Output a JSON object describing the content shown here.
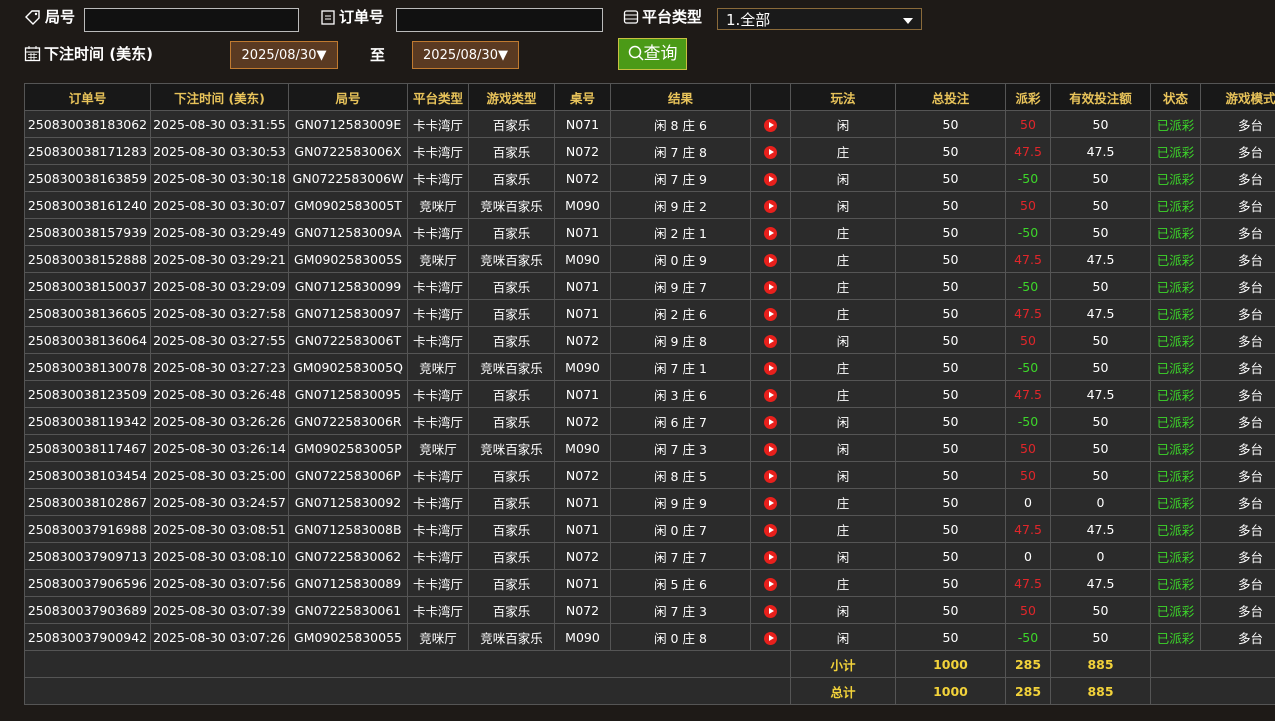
{
  "filters": {
    "round_label": "局号",
    "order_label": "订单号",
    "platform_label": "平台类型",
    "platform_value": "1.全部",
    "time_label": "下注时间 (美东)",
    "date_from": "2025/08/30▼",
    "to_label": "至",
    "date_to": "2025/08/30▼",
    "search_button": "查询"
  },
  "table": {
    "headers": [
      "订单号",
      "下注时间 (美东)",
      "局号",
      "平台类型",
      "游戏类型",
      "桌号",
      "结果",
      "玩法",
      "总投注",
      "派彩",
      "有效投注额",
      "状态",
      "游戏模式"
    ],
    "rows": [
      [
        "250830038183062",
        "2025-08-30 03:31:55",
        "GN0712583009E",
        "卡卡湾厅",
        "百家乐",
        "N071",
        "闲 8 庄 6",
        "闲",
        "50",
        "50",
        "50",
        "已派彩",
        "多台"
      ],
      [
        "250830038171283",
        "2025-08-30 03:30:53",
        "GN0722583006X",
        "卡卡湾厅",
        "百家乐",
        "N072",
        "闲 7 庄 8",
        "庄",
        "50",
        "47.5",
        "47.5",
        "已派彩",
        "多台"
      ],
      [
        "250830038163859",
        "2025-08-30 03:30:18",
        "GN0722583006W",
        "卡卡湾厅",
        "百家乐",
        "N072",
        "闲 7 庄 9",
        "闲",
        "50",
        "-50",
        "50",
        "已派彩",
        "多台"
      ],
      [
        "250830038161240",
        "2025-08-30 03:30:07",
        "GM0902583005T",
        "竞咪厅",
        "竞咪百家乐",
        "M090",
        "闲 9 庄 2",
        "闲",
        "50",
        "50",
        "50",
        "已派彩",
        "多台"
      ],
      [
        "250830038157939",
        "2025-08-30 03:29:49",
        "GN0712583009A",
        "卡卡湾厅",
        "百家乐",
        "N071",
        "闲 2 庄 1",
        "庄",
        "50",
        "-50",
        "50",
        "已派彩",
        "多台"
      ],
      [
        "250830038152888",
        "2025-08-30 03:29:21",
        "GM0902583005S",
        "竞咪厅",
        "竞咪百家乐",
        "M090",
        "闲 0 庄 9",
        "庄",
        "50",
        "47.5",
        "47.5",
        "已派彩",
        "多台"
      ],
      [
        "250830038150037",
        "2025-08-30 03:29:09",
        "GN07125830099",
        "卡卡湾厅",
        "百家乐",
        "N071",
        "闲 9 庄 7",
        "庄",
        "50",
        "-50",
        "50",
        "已派彩",
        "多台"
      ],
      [
        "250830038136605",
        "2025-08-30 03:27:58",
        "GN07125830097",
        "卡卡湾厅",
        "百家乐",
        "N071",
        "闲 2 庄 6",
        "庄",
        "50",
        "47.5",
        "47.5",
        "已派彩",
        "多台"
      ],
      [
        "250830038136064",
        "2025-08-30 03:27:55",
        "GN0722583006T",
        "卡卡湾厅",
        "百家乐",
        "N072",
        "闲 9 庄 8",
        "闲",
        "50",
        "50",
        "50",
        "已派彩",
        "多台"
      ],
      [
        "250830038130078",
        "2025-08-30 03:27:23",
        "GM0902583005Q",
        "竞咪厅",
        "竞咪百家乐",
        "M090",
        "闲 7 庄 1",
        "庄",
        "50",
        "-50",
        "50",
        "已派彩",
        "多台"
      ],
      [
        "250830038123509",
        "2025-08-30 03:26:48",
        "GN07125830095",
        "卡卡湾厅",
        "百家乐",
        "N071",
        "闲 3 庄 6",
        "庄",
        "50",
        "47.5",
        "47.5",
        "已派彩",
        "多台"
      ],
      [
        "250830038119342",
        "2025-08-30 03:26:26",
        "GN0722583006R",
        "卡卡湾厅",
        "百家乐",
        "N072",
        "闲 6 庄 7",
        "闲",
        "50",
        "-50",
        "50",
        "已派彩",
        "多台"
      ],
      [
        "250830038117467",
        "2025-08-30 03:26:14",
        "GM0902583005P",
        "竞咪厅",
        "竞咪百家乐",
        "M090",
        "闲 7 庄 3",
        "闲",
        "50",
        "50",
        "50",
        "已派彩",
        "多台"
      ],
      [
        "250830038103454",
        "2025-08-30 03:25:00",
        "GN0722583006P",
        "卡卡湾厅",
        "百家乐",
        "N072",
        "闲 8 庄 5",
        "闲",
        "50",
        "50",
        "50",
        "已派彩",
        "多台"
      ],
      [
        "250830038102867",
        "2025-08-30 03:24:57",
        "GN07125830092",
        "卡卡湾厅",
        "百家乐",
        "N071",
        "闲 9 庄 9",
        "庄",
        "50",
        "0",
        "0",
        "已派彩",
        "多台"
      ],
      [
        "250830037916988",
        "2025-08-30 03:08:51",
        "GN0712583008B",
        "卡卡湾厅",
        "百家乐",
        "N071",
        "闲 0 庄 7",
        "庄",
        "50",
        "47.5",
        "47.5",
        "已派彩",
        "多台"
      ],
      [
        "250830037909713",
        "2025-08-30 03:08:10",
        "GN07225830062",
        "卡卡湾厅",
        "百家乐",
        "N072",
        "闲 7 庄 7",
        "闲",
        "50",
        "0",
        "0",
        "已派彩",
        "多台"
      ],
      [
        "250830037906596",
        "2025-08-30 03:07:56",
        "GN07125830089",
        "卡卡湾厅",
        "百家乐",
        "N071",
        "闲 5 庄 6",
        "庄",
        "50",
        "47.5",
        "47.5",
        "已派彩",
        "多台"
      ],
      [
        "250830037903689",
        "2025-08-30 03:07:39",
        "GN07225830061",
        "卡卡湾厅",
        "百家乐",
        "N072",
        "闲 7 庄 3",
        "闲",
        "50",
        "50",
        "50",
        "已派彩",
        "多台"
      ],
      [
        "250830037900942",
        "2025-08-30 03:07:26",
        "GM09025830055",
        "竞咪厅",
        "竞咪百家乐",
        "M090",
        "闲 0 庄 8",
        "闲",
        "50",
        "-50",
        "50",
        "已派彩",
        "多台"
      ]
    ],
    "summary": [
      {
        "label": "小计",
        "total_bet": "1000",
        "payout": "285",
        "valid_bet": "885"
      },
      {
        "label": "总计",
        "total_bet": "1000",
        "payout": "285",
        "valid_bet": "885"
      }
    ]
  }
}
